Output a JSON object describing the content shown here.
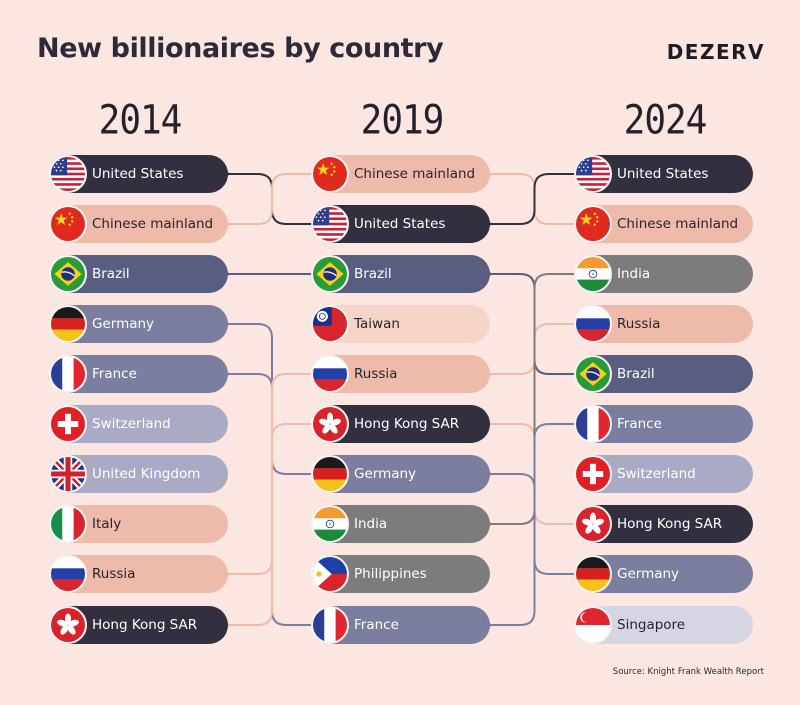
{
  "header": {
    "title": "New billionaires by country",
    "brand": "DEZERV"
  },
  "source": "Source: Knight Frank Wealth Report",
  "colors": {
    "dark": "#32303e",
    "navy": "#595d80",
    "slate": "#7b7e9e",
    "lavender": "#a9aac4",
    "salmon": "#eebbaa",
    "peach": "#f6d4c8",
    "grey": "#7c7c7e",
    "lightgrey": "#d6d6e2"
  },
  "columns": [
    {
      "year": "2014",
      "items": [
        {
          "name": "United States",
          "flag": "us",
          "color": "dark"
        },
        {
          "name": "Chinese mainland",
          "flag": "cn",
          "color": "salmon"
        },
        {
          "name": "Brazil",
          "flag": "br",
          "color": "navy"
        },
        {
          "name": "Germany",
          "flag": "de",
          "color": "slate"
        },
        {
          "name": "France",
          "flag": "fr",
          "color": "slate"
        },
        {
          "name": "Switzerland",
          "flag": "ch",
          "color": "lavender"
        },
        {
          "name": "United Kingdom",
          "flag": "gb",
          "color": "lavender"
        },
        {
          "name": "Italy",
          "flag": "it",
          "color": "salmon"
        },
        {
          "name": "Russia",
          "flag": "ru",
          "color": "salmon"
        },
        {
          "name": "Hong Kong SAR",
          "flag": "hk",
          "color": "dark"
        }
      ]
    },
    {
      "year": "2019",
      "items": [
        {
          "name": "Chinese mainland",
          "flag": "cn",
          "color": "salmon"
        },
        {
          "name": "United States",
          "flag": "us",
          "color": "dark"
        },
        {
          "name": "Brazil",
          "flag": "br",
          "color": "navy"
        },
        {
          "name": "Taiwan",
          "flag": "tw",
          "color": "peach"
        },
        {
          "name": "Russia",
          "flag": "ru",
          "color": "salmon"
        },
        {
          "name": "Hong Kong SAR",
          "flag": "hk",
          "color": "dark"
        },
        {
          "name": "Germany",
          "flag": "de",
          "color": "slate"
        },
        {
          "name": "India",
          "flag": "in",
          "color": "grey"
        },
        {
          "name": "Philippines",
          "flag": "ph",
          "color": "grey"
        },
        {
          "name": "France",
          "flag": "fr",
          "color": "slate"
        }
      ]
    },
    {
      "year": "2024",
      "items": [
        {
          "name": "United States",
          "flag": "us",
          "color": "dark"
        },
        {
          "name": "Chinese mainland",
          "flag": "cn",
          "color": "salmon"
        },
        {
          "name": "India",
          "flag": "in",
          "color": "grey"
        },
        {
          "name": "Russia",
          "flag": "ru",
          "color": "salmon"
        },
        {
          "name": "Brazil",
          "flag": "br",
          "color": "navy"
        },
        {
          "name": "France",
          "flag": "fr",
          "color": "slate"
        },
        {
          "name": "Switzerland",
          "flag": "ch",
          "color": "lavender"
        },
        {
          "name": "Hong Kong SAR",
          "flag": "hk",
          "color": "dark"
        },
        {
          "name": "Germany",
          "flag": "de",
          "color": "slate"
        },
        {
          "name": "Singapore",
          "flag": "sg",
          "color": "lightgrey"
        }
      ]
    }
  ],
  "links": [
    {
      "from": [
        0,
        0
      ],
      "to": [
        1,
        1
      ],
      "color": "dark"
    },
    {
      "from": [
        0,
        1
      ],
      "to": [
        1,
        0
      ],
      "color": "salmon"
    },
    {
      "from": [
        0,
        2
      ],
      "to": [
        1,
        2
      ],
      "color": "navy"
    },
    {
      "from": [
        0,
        3
      ],
      "to": [
        1,
        6
      ],
      "color": "slate"
    },
    {
      "from": [
        0,
        4
      ],
      "to": [
        1,
        9
      ],
      "color": "slate"
    },
    {
      "from": [
        0,
        8
      ],
      "to": [
        1,
        4
      ],
      "color": "salmon"
    },
    {
      "from": [
        0,
        9
      ],
      "to": [
        1,
        5
      ],
      "color": "salmon"
    },
    {
      "from": [
        1,
        0
      ],
      "to": [
        2,
        1
      ],
      "color": "salmon"
    },
    {
      "from": [
        1,
        1
      ],
      "to": [
        2,
        0
      ],
      "color": "dark"
    },
    {
      "from": [
        1,
        2
      ],
      "to": [
        2,
        4
      ],
      "color": "navy"
    },
    {
      "from": [
        1,
        4
      ],
      "to": [
        2,
        3
      ],
      "color": "salmon"
    },
    {
      "from": [
        1,
        5
      ],
      "to": [
        2,
        7
      ],
      "color": "salmon"
    },
    {
      "from": [
        1,
        6
      ],
      "to": [
        2,
        8
      ],
      "color": "slate"
    },
    {
      "from": [
        1,
        7
      ],
      "to": [
        2,
        2
      ],
      "color": "grey"
    },
    {
      "from": [
        1,
        9
      ],
      "to": [
        2,
        5
      ],
      "color": "slate"
    }
  ]
}
